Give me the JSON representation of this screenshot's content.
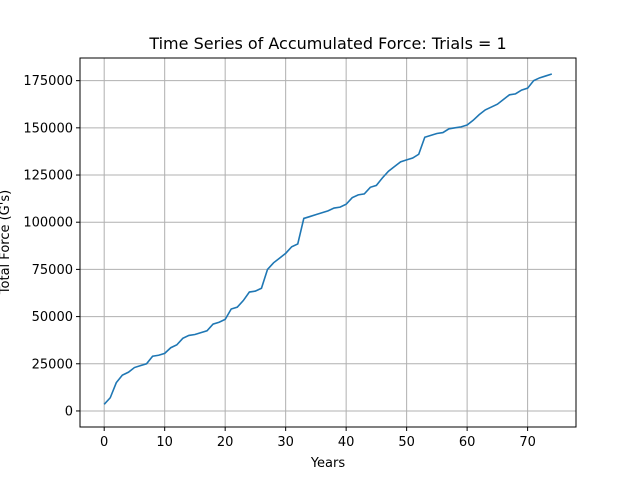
{
  "chart_data": {
    "type": "line",
    "title": "Time Series of Accumulated Force: Trials = 1",
    "xlabel": "Years",
    "ylabel": "Total Force (G's)",
    "xlim": [
      -4,
      78
    ],
    "ylim": [
      -8500,
      187000
    ],
    "x_ticks": [
      0,
      10,
      20,
      30,
      40,
      50,
      60,
      70
    ],
    "y_ticks": [
      0,
      25000,
      50000,
      75000,
      100000,
      125000,
      150000,
      175000
    ],
    "grid": true,
    "colors": {
      "line": "#1f77b4"
    },
    "series": [
      {
        "x": [
          0,
          1,
          2,
          3,
          4,
          5,
          6,
          7,
          8,
          9,
          10,
          11,
          12,
          13,
          14,
          15,
          16,
          17,
          18,
          19,
          20,
          21,
          22,
          23,
          24,
          25,
          26,
          27,
          28,
          29,
          30,
          31,
          32,
          33,
          34,
          35,
          36,
          37,
          38,
          39,
          40,
          41,
          42,
          43,
          44,
          45,
          46,
          47,
          48,
          49,
          50,
          51,
          52,
          53,
          54,
          55,
          56,
          57,
          58,
          59,
          60,
          61,
          62,
          63,
          64,
          65,
          66,
          67,
          68,
          69,
          70,
          71,
          72,
          73,
          74
        ],
        "values": [
          3500,
          7000,
          15000,
          19000,
          20500,
          23000,
          24000,
          25000,
          29000,
          29500,
          30500,
          33500,
          35000,
          38500,
          40000,
          40500,
          41500,
          42500,
          46000,
          47000,
          48500,
          54000,
          55000,
          58500,
          63000,
          63500,
          65000,
          75000,
          78500,
          81000,
          83500,
          87000,
          88500,
          102000,
          103000,
          104000,
          105000,
          106000,
          107500,
          108000,
          109500,
          113000,
          114500,
          115000,
          118500,
          119500,
          123500,
          127000,
          129500,
          132000,
          133000,
          134000,
          136000,
          145000,
          146000,
          147000,
          147500,
          149500,
          150000,
          150500,
          151500,
          154000,
          157000,
          159500,
          161000,
          162500,
          165000,
          167500,
          168000,
          170000,
          171000,
          175000,
          176500,
          177500,
          178500
        ]
      }
    ]
  }
}
